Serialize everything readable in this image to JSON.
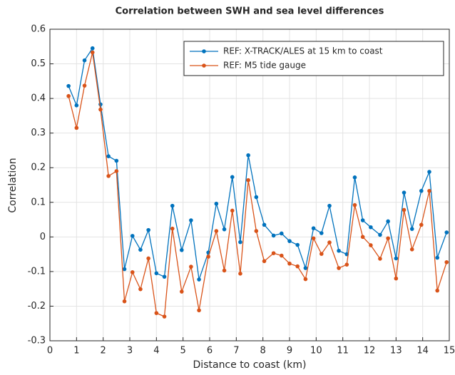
{
  "chart_data": {
    "type": "line",
    "title": "Correlation between SWH and sea level differences",
    "xlabel": "Distance to coast (km)",
    "ylabel": "Correlation",
    "x": [
      0.7,
      1.0,
      1.3,
      1.6,
      1.9,
      2.2,
      2.5,
      2.8,
      3.1,
      3.4,
      3.7,
      4.0,
      4.3,
      4.6,
      4.95,
      5.3,
      5.6,
      5.95,
      6.25,
      6.55,
      6.85,
      7.15,
      7.45,
      7.75,
      8.05,
      8.4,
      8.7,
      9.0,
      9.3,
      9.6,
      9.9,
      10.2,
      10.5,
      10.85,
      11.15,
      11.45,
      11.75,
      12.05,
      12.4,
      12.7,
      13.0,
      13.3,
      13.6,
      13.95,
      14.25,
      14.55,
      14.9
    ],
    "series": [
      {
        "name": "REF: X-TRACK/ALES at 15 km to coast",
        "color": "#0072bd",
        "values": [
          0.436,
          0.38,
          0.51,
          0.545,
          0.383,
          0.233,
          0.22,
          -0.093,
          0.003,
          -0.037,
          0.02,
          -0.105,
          -0.115,
          0.09,
          -0.038,
          0.048,
          -0.123,
          -0.045,
          0.096,
          0.022,
          0.173,
          -0.015,
          0.236,
          0.115,
          0.035,
          0.004,
          0.01,
          -0.012,
          -0.023,
          -0.09,
          0.025,
          0.011,
          0.09,
          -0.04,
          -0.05,
          0.172,
          0.048,
          0.028,
          0.006,
          0.045,
          -0.062,
          0.128,
          0.023,
          0.133,
          0.188,
          -0.06,
          0.013
        ]
      },
      {
        "name": "REF: M5 tide gauge",
        "color": "#d95319",
        "values": [
          0.407,
          0.315,
          0.437,
          0.533,
          0.368,
          0.176,
          0.19,
          -0.186,
          -0.102,
          -0.151,
          -0.062,
          -0.22,
          -0.23,
          0.024,
          -0.158,
          -0.086,
          -0.212,
          -0.057,
          0.017,
          -0.097,
          0.076,
          -0.106,
          0.164,
          0.017,
          -0.07,
          -0.047,
          -0.054,
          -0.077,
          -0.085,
          -0.122,
          -0.004,
          -0.049,
          -0.016,
          -0.09,
          -0.08,
          0.092,
          0,
          -0.024,
          -0.063,
          -0.004,
          -0.12,
          0.078,
          -0.036,
          0.035,
          0.133,
          -0.155,
          -0.073
        ]
      }
    ],
    "xlim": [
      0,
      15
    ],
    "xticks": [
      0,
      1,
      2,
      3,
      4,
      5,
      6,
      7,
      8,
      9,
      10,
      11,
      12,
      13,
      14,
      15
    ],
    "ylim": [
      -0.3,
      0.6
    ],
    "yticks": [
      -0.3,
      -0.2,
      -0.1,
      0,
      0.1,
      0.2,
      0.3,
      0.4,
      0.5,
      0.6
    ],
    "grid": true,
    "legend": "top-right"
  }
}
